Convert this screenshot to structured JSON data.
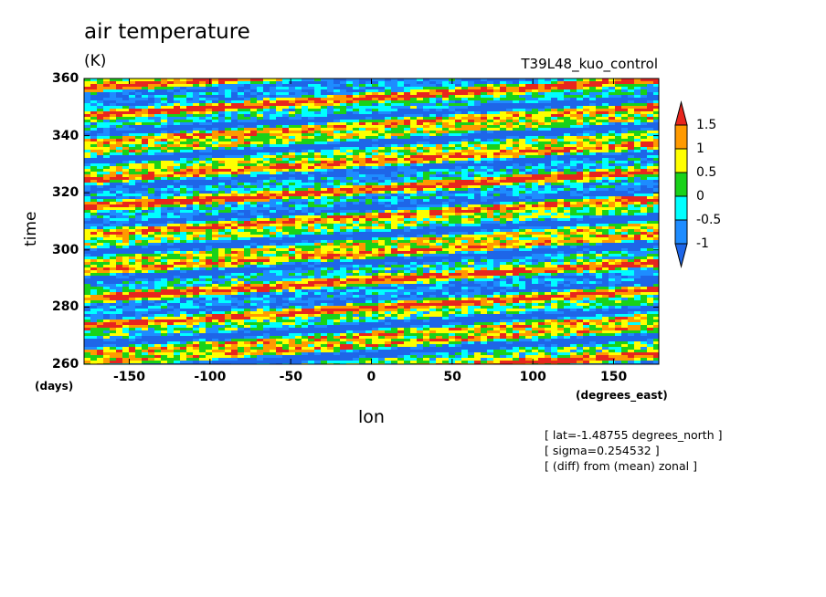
{
  "chart_data": {
    "type": "heatmap",
    "title": "air temperature",
    "units": "(K)",
    "run_name": "T39L48_kuo_control",
    "xlabel": "lon",
    "xunit": "(degrees_east)",
    "ylabel": "time",
    "yunit": "(days)",
    "xlim": [
      -178,
      178
    ],
    "ylim": [
      260,
      360
    ],
    "x_ticks": [
      "-150",
      "-100",
      "-50",
      "0",
      "50",
      "100",
      "150"
    ],
    "x_tick_values": [
      -150,
      -100,
      -50,
      0,
      50,
      100,
      150
    ],
    "y_ticks": [
      "260",
      "280",
      "300",
      "320",
      "340",
      "360"
    ],
    "y_tick_values": [
      260,
      280,
      300,
      320,
      340,
      360
    ],
    "colorbar": {
      "labels": [
        "1.5",
        "1",
        "0.5",
        "0",
        "-0.5",
        "-1"
      ],
      "levels": [
        1.5,
        1,
        0.5,
        0,
        -0.5,
        -1
      ],
      "colors": [
        "#e8261e",
        "#ff9a00",
        "#ffff00",
        "#19d219",
        "#00ffff",
        "#1e8cff",
        "#1e66e8"
      ]
    },
    "annotations": [
      "[ lat=-1.48755 degrees_north ]",
      "[ sigma=0.254532 ]",
      "[ (diff) from (mean) zonal ]"
    ],
    "description_of_field": "longitude-time Hovmoller of zonal-mean-removed air temperature anomaly with eastward-propagating bands"
  }
}
